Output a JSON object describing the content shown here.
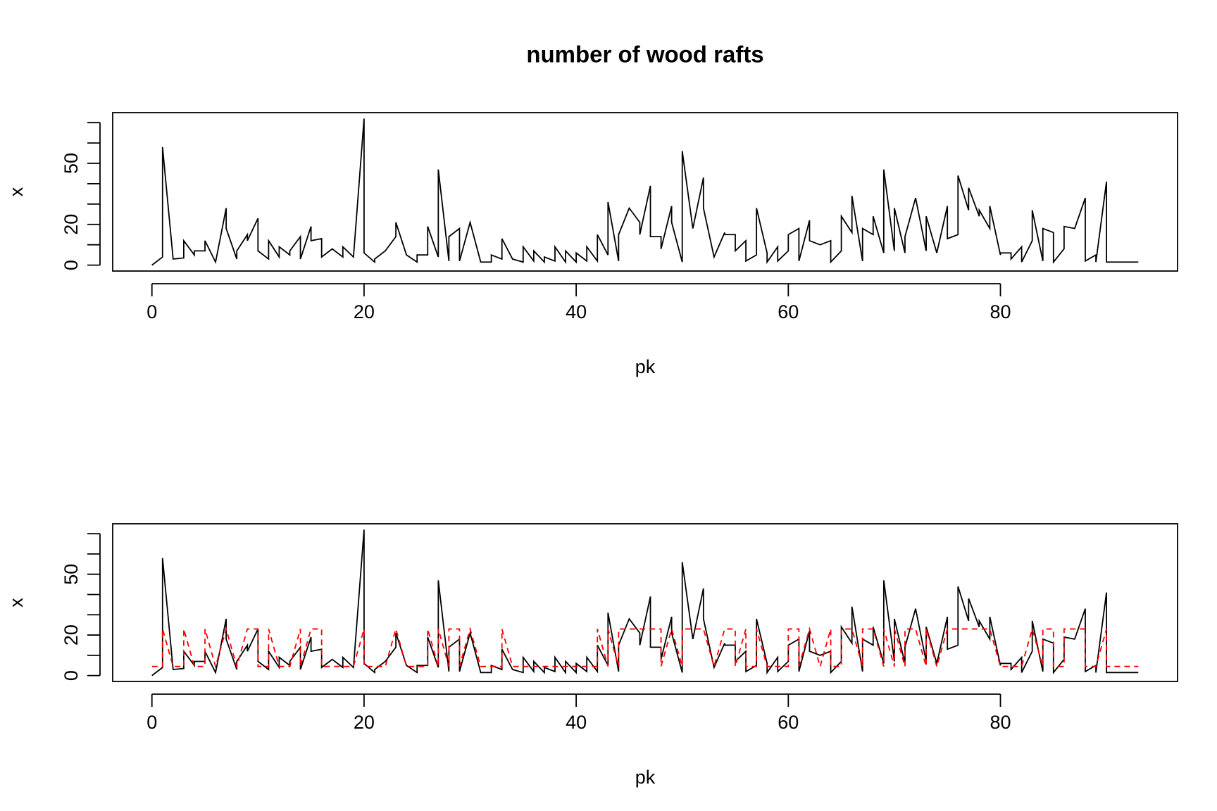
{
  "chart_data": [
    {
      "type": "line",
      "title": "number of wood rafts",
      "xlabel": "pk",
      "ylabel": "x",
      "xlim": [
        -3.7,
        96.7
      ],
      "ylim": [
        -2.9,
        74.9
      ],
      "xticks": [
        0,
        20,
        40,
        60,
        80
      ],
      "yticks": [
        0,
        20,
        50
      ],
      "yticks_unlabeled": [
        10,
        30,
        40,
        60,
        70
      ],
      "x": [
        0,
        1,
        1,
        2,
        3,
        3,
        4,
        4,
        5,
        5,
        6,
        7,
        7,
        8,
        8,
        9,
        9,
        10,
        10,
        11,
        11,
        12,
        12,
        13,
        13,
        14,
        14,
        15,
        15,
        16,
        16,
        17,
        18,
        18,
        19,
        20,
        20,
        21,
        21,
        22,
        23,
        23,
        24,
        25,
        25,
        26,
        26,
        27,
        27,
        28,
        28,
        29,
        29,
        30,
        31,
        32,
        32,
        33,
        33,
        34,
        35,
        35,
        36,
        36,
        37,
        37,
        38,
        38,
        39,
        39,
        40,
        40,
        41,
        41,
        42,
        42,
        43,
        43,
        44,
        44,
        45,
        46,
        46,
        47,
        47,
        48,
        48,
        49,
        49,
        50,
        50,
        51,
        52,
        52,
        53,
        54,
        54,
        55,
        55,
        56,
        56,
        57,
        57,
        58,
        58,
        59,
        59,
        60,
        60,
        61,
        61,
        62,
        62,
        63,
        64,
        64,
        65,
        65,
        66,
        66,
        67,
        67,
        68,
        68,
        69,
        69,
        70,
        70,
        71,
        71,
        72,
        73,
        73,
        74,
        75,
        75,
        76,
        76,
        77,
        77,
        78,
        78,
        79,
        79,
        80,
        80,
        81,
        81,
        82,
        82,
        83,
        83,
        84,
        84,
        85,
        85,
        86,
        86,
        87,
        88,
        88,
        89,
        89,
        90,
        90,
        93
      ],
      "series": [
        {
          "color": "#000000",
          "dash": "solid",
          "values": [
            0,
            4,
            58,
            3,
            3.5,
            12,
            5,
            7,
            7,
            12,
            1.5,
            28,
            18,
            3,
            7,
            15,
            12,
            23,
            7,
            3,
            12,
            4,
            9,
            5,
            7,
            14,
            3,
            19,
            12,
            13,
            4,
            8,
            4,
            9,
            4,
            72,
            6,
            1.5,
            3,
            7,
            14,
            21,
            5,
            1.5,
            5,
            5,
            19,
            4,
            47,
            2,
            14,
            18,
            2,
            21,
            1.5,
            1.5,
            5,
            3,
            13,
            3,
            1.5,
            9,
            2,
            7,
            1.5,
            4,
            2,
            9,
            1.5,
            7,
            1.5,
            6,
            2,
            9,
            2,
            15,
            5,
            31,
            2,
            15,
            28,
            21,
            15,
            39,
            14,
            14,
            8,
            29,
            21,
            1.5,
            56,
            18,
            43,
            28,
            4,
            16,
            15,
            15,
            7,
            12,
            2,
            5,
            28,
            6,
            1.5,
            9,
            2,
            7,
            15,
            18,
            2,
            22,
            12,
            10,
            12,
            1.5,
            7,
            24,
            16,
            34,
            2,
            18,
            15,
            24,
            6,
            47,
            7,
            28,
            6,
            14,
            33,
            7,
            24,
            6,
            29,
            13,
            15,
            44,
            27,
            38,
            24,
            27,
            18,
            29,
            5,
            6,
            6,
            3,
            9,
            1.5,
            12,
            27,
            2,
            18,
            16,
            1.5,
            8,
            19,
            18,
            33,
            2,
            5,
            1.5,
            41,
            1.5,
            1.5
          ]
        }
      ]
    },
    {
      "type": "line",
      "xlabel": "pk",
      "ylabel": "x",
      "xlim": [
        -3.7,
        96.7
      ],
      "ylim": [
        -2.9,
        74.9
      ],
      "xticks": [
        0,
        20,
        40,
        60,
        80
      ],
      "yticks": [
        0,
        20,
        50
      ],
      "yticks_unlabeled": [
        10,
        30,
        40,
        60,
        70
      ],
      "x": [
        0,
        1,
        1,
        2,
        3,
        3,
        4,
        4,
        5,
        5,
        6,
        7,
        7,
        8,
        8,
        9,
        9,
        10,
        10,
        11,
        11,
        12,
        12,
        13,
        13,
        14,
        14,
        15,
        15,
        16,
        16,
        17,
        18,
        18,
        19,
        20,
        20,
        21,
        21,
        22,
        23,
        23,
        24,
        25,
        25,
        26,
        26,
        27,
        27,
        28,
        28,
        29,
        29,
        30,
        31,
        32,
        32,
        33,
        33,
        34,
        35,
        35,
        36,
        36,
        37,
        37,
        38,
        38,
        39,
        39,
        40,
        40,
        41,
        41,
        42,
        42,
        43,
        43,
        44,
        44,
        45,
        46,
        46,
        47,
        47,
        48,
        48,
        49,
        49,
        50,
        50,
        51,
        52,
        52,
        53,
        54,
        54,
        55,
        55,
        56,
        56,
        57,
        57,
        58,
        58,
        59,
        59,
        60,
        60,
        61,
        61,
        62,
        62,
        63,
        64,
        64,
        65,
        65,
        66,
        66,
        67,
        67,
        68,
        68,
        69,
        69,
        70,
        70,
        71,
        71,
        72,
        73,
        73,
        74,
        75,
        75,
        76,
        76,
        77,
        77,
        78,
        78,
        79,
        79,
        80,
        80,
        81,
        81,
        82,
        82,
        83,
        83,
        84,
        84,
        85,
        85,
        86,
        86,
        87,
        88,
        88,
        89,
        89,
        90,
        90,
        93
      ],
      "series": [
        {
          "color": "#000000",
          "dash": "solid",
          "values": [
            0,
            4,
            58,
            3,
            3.5,
            12,
            5,
            7,
            7,
            12,
            1.5,
            28,
            18,
            3,
            7,
            15,
            12,
            23,
            7,
            3,
            12,
            4,
            9,
            5,
            7,
            14,
            3,
            19,
            12,
            13,
            4,
            8,
            4,
            9,
            4,
            72,
            6,
            1.5,
            3,
            7,
            14,
            21,
            5,
            1.5,
            5,
            5,
            19,
            4,
            47,
            2,
            14,
            18,
            2,
            21,
            1.5,
            1.5,
            5,
            3,
            13,
            3,
            1.5,
            9,
            2,
            7,
            1.5,
            4,
            2,
            9,
            1.5,
            7,
            1.5,
            6,
            2,
            9,
            2,
            15,
            5,
            31,
            2,
            15,
            28,
            21,
            15,
            39,
            14,
            14,
            8,
            29,
            21,
            1.5,
            56,
            18,
            43,
            28,
            4,
            16,
            15,
            15,
            7,
            12,
            2,
            5,
            28,
            6,
            1.5,
            9,
            2,
            7,
            15,
            18,
            2,
            22,
            12,
            10,
            12,
            1.5,
            7,
            24,
            16,
            34,
            2,
            18,
            15,
            24,
            6,
            47,
            7,
            28,
            6,
            14,
            33,
            7,
            24,
            6,
            29,
            13,
            15,
            44,
            27,
            38,
            24,
            27,
            18,
            29,
            5,
            6,
            6,
            3,
            9,
            1.5,
            12,
            27,
            2,
            18,
            16,
            1.5,
            8,
            19,
            18,
            33,
            2,
            5,
            1.5,
            41,
            1.5,
            1.5
          ]
        },
        {
          "color": "#ff0000",
          "dash": "dashed",
          "values": [
            4.5,
            4.5,
            23,
            4.5,
            4.5,
            23,
            4.5,
            4.5,
            4.5,
            23,
            4.5,
            23,
            23,
            4.5,
            4.5,
            23,
            23,
            23,
            4.5,
            4.5,
            23,
            4.5,
            4.5,
            4.5,
            4.5,
            23,
            4.5,
            23,
            23,
            23,
            4.5,
            4.5,
            4.5,
            4.5,
            4.5,
            23,
            4.5,
            4.5,
            4.5,
            4.5,
            23,
            23,
            4.5,
            4.5,
            4.5,
            4.5,
            23,
            4.5,
            23,
            4.5,
            23,
            23,
            4.5,
            23,
            4.5,
            4.5,
            4.5,
            4.5,
            23,
            4.5,
            4.5,
            4.5,
            4.5,
            4.5,
            4.5,
            4.5,
            4.5,
            4.5,
            4.5,
            4.5,
            4.5,
            4.5,
            4.5,
            4.5,
            4.5,
            23,
            4.5,
            23,
            4.5,
            23,
            23,
            23,
            23,
            23,
            23,
            23,
            4.5,
            23,
            23,
            4.5,
            23,
            23,
            23,
            23,
            4.5,
            23,
            23,
            23,
            4.5,
            23,
            4.5,
            4.5,
            23,
            4.5,
            4.5,
            4.5,
            4.5,
            4.5,
            23,
            23,
            4.5,
            23,
            23,
            4.5,
            23,
            4.5,
            4.5,
            23,
            23,
            23,
            4.5,
            23,
            23,
            23,
            4.5,
            23,
            4.5,
            23,
            4.5,
            23,
            23,
            4.5,
            23,
            4.5,
            23,
            23,
            23,
            23,
            23,
            23,
            23,
            23,
            23,
            23,
            4.5,
            4.5,
            4.5,
            4.5,
            4.5,
            4.5,
            23,
            23,
            4.5,
            23,
            23,
            4.5,
            4.5,
            23,
            23,
            23,
            4.5,
            4.5,
            4.5,
            23,
            4.5,
            4.5
          ]
        }
      ]
    }
  ]
}
